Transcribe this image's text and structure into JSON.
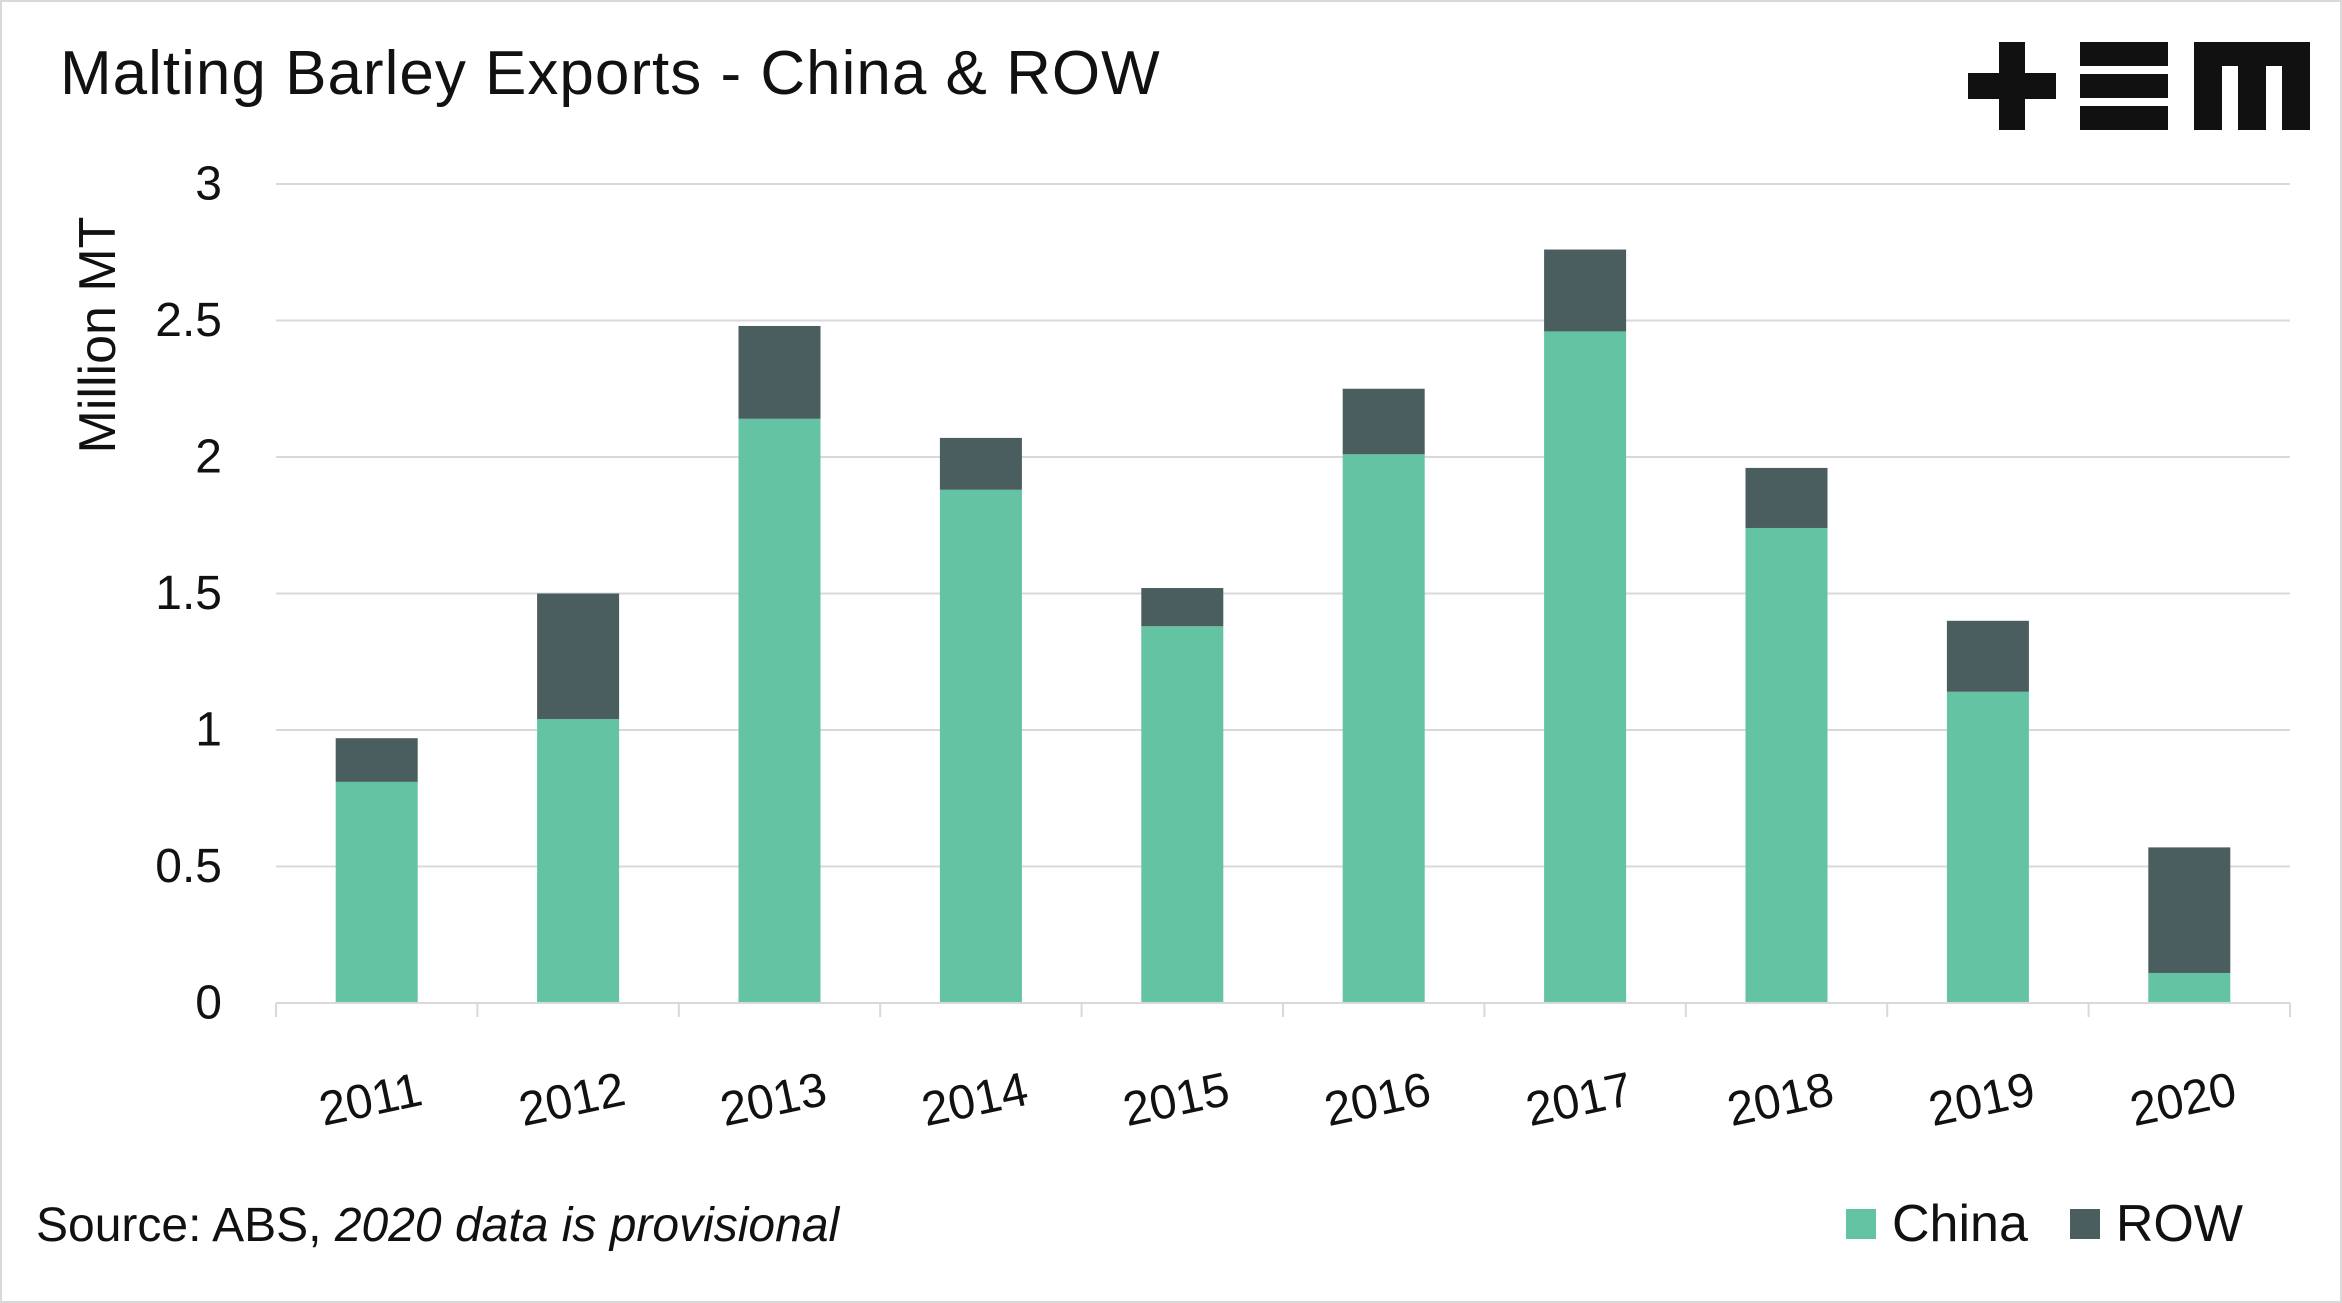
{
  "title": "Malting Barley Exports - China & ROW",
  "source": {
    "prefix": "Source: ABS,",
    "note": "2020 data is provisional"
  },
  "logo": {
    "icon": "tem-logo"
  },
  "legend": [
    {
      "label": "China",
      "color": "#63c3a3"
    },
    {
      "label": "ROW",
      "color": "#4a5d5f"
    }
  ],
  "chart_data": {
    "type": "bar",
    "stacked": true,
    "title": "Malting Barley Exports - China & ROW",
    "ylabel": "Million MT",
    "xlabel": "",
    "ylim": [
      0,
      3
    ],
    "yticks": [
      0,
      0.5,
      1,
      1.5,
      2,
      2.5,
      3
    ],
    "ytick_labels": [
      "0",
      "0.5",
      "1",
      "1.5",
      "2",
      "2.5",
      "3"
    ],
    "grid": true,
    "legend_position": "bottom-right",
    "categories": [
      "2011",
      "2012",
      "2013",
      "2014",
      "2015",
      "2016",
      "2017",
      "2018",
      "2019",
      "2020"
    ],
    "series": [
      {
        "name": "China",
        "color": "#63c3a3",
        "values": [
          0.81,
          1.04,
          2.14,
          1.88,
          1.38,
          2.01,
          2.46,
          1.74,
          1.14,
          0.11
        ]
      },
      {
        "name": "ROW",
        "color": "#4a5d5f",
        "values": [
          0.16,
          0.46,
          0.34,
          0.19,
          0.14,
          0.24,
          0.3,
          0.22,
          0.26,
          0.46
        ]
      }
    ]
  }
}
